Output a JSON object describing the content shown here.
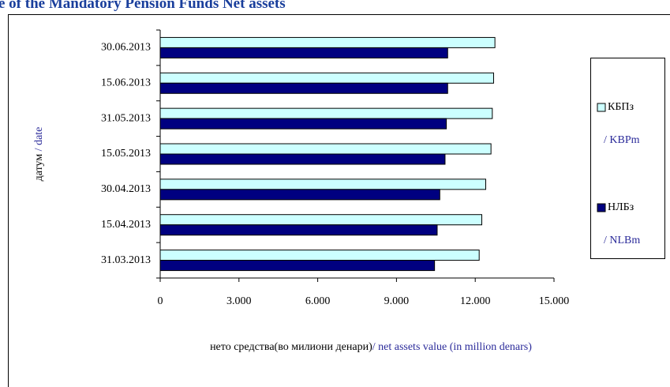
{
  "chart_data": {
    "type": "hbar",
    "title": "e of the Mandatory Pension Funds Net assets",
    "y_label": "датум",
    "y_label_en": "/ date",
    "x_label": "нето средства(во милиони денари)",
    "x_label_en": "/ net assets value (in million denars)",
    "categories": [
      "30.06.2013",
      "15.06.2013",
      "31.05.2013",
      "15.05.2013",
      "30.04.2013",
      "15.04.2013",
      "31.03.2013"
    ],
    "series": [
      {
        "name": "КБПз",
        "name_en": "/ KBPm",
        "color": "#ccffff",
        "values": [
          12750,
          12700,
          12650,
          12600,
          12400,
          12250,
          12150
        ]
      },
      {
        "name": "НЛБз",
        "name_en": "/ NLBm",
        "color": "#000080",
        "values": [
          10950,
          10950,
          10900,
          10850,
          10650,
          10550,
          10450
        ]
      }
    ],
    "xlim": [
      0,
      15000
    ],
    "xticks": [
      0,
      {
        "value": 3000,
        "label": "3.000"
      },
      {
        "value": 6000,
        "label": "6.000"
      },
      {
        "value": 9000,
        "label": "9.000"
      },
      {
        "value": 12000,
        "label": "12.000"
      },
      {
        "value": 15000,
        "label": "15.000"
      }
    ],
    "legend": "right"
  }
}
